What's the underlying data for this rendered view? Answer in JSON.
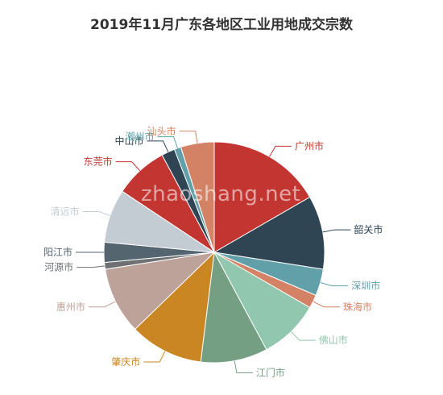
{
  "chart_data": {
    "type": "pie",
    "title": "2019年11月广东各地区工业用地成交宗数",
    "slices": [
      {
        "label": "广州市",
        "value": 17,
        "color": "#c23531"
      },
      {
        "label": "韶关市",
        "value": 11,
        "color": "#2f4554"
      },
      {
        "label": "深圳市",
        "value": 4,
        "color": "#61a0a8"
      },
      {
        "label": "珠海市",
        "value": 2,
        "color": "#d48265"
      },
      {
        "label": "佛山市",
        "value": 9,
        "color": "#91c7ae"
      },
      {
        "label": "江门市",
        "value": 10,
        "color": "#749f83"
      },
      {
        "label": "肇庆市",
        "value": 11,
        "color": "#ca8622"
      },
      {
        "label": "惠州市",
        "value": 10,
        "color": "#bda29a"
      },
      {
        "label": "河源市",
        "value": 1,
        "color": "#6e7074"
      },
      {
        "label": "阳江市",
        "value": 3,
        "color": "#546570"
      },
      {
        "label": "清远市",
        "value": 8,
        "color": "#c4ccd3"
      },
      {
        "label": "东莞市",
        "value": 8,
        "color": "#c23531"
      },
      {
        "label": "中山市",
        "value": 2,
        "color": "#2f4554"
      },
      {
        "label": "潮州市",
        "value": 1,
        "color": "#61a0a8"
      },
      {
        "label": "汕头市",
        "value": 5,
        "color": "#d48265"
      }
    ]
  },
  "watermark": "zhaoshang.net"
}
